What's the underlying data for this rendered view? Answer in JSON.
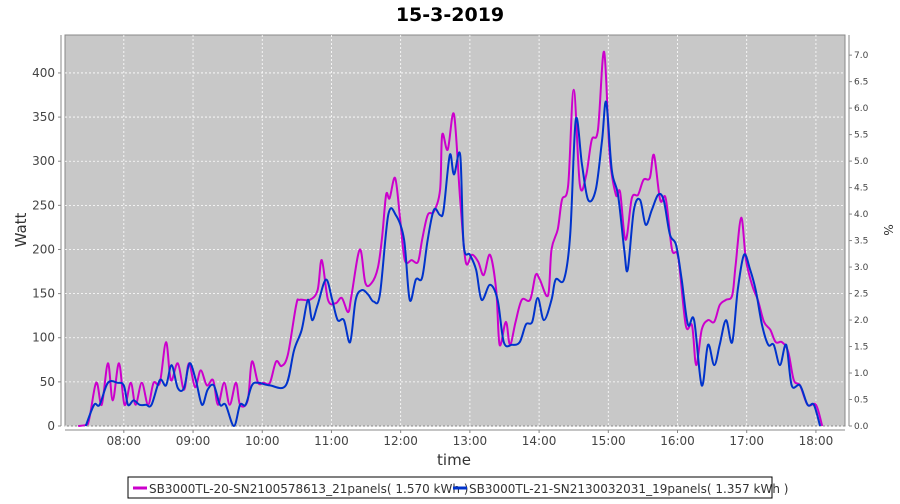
{
  "chart_data": {
    "type": "line",
    "title": "15-3-2019",
    "xlabel": "time",
    "ylabel": "Watt",
    "y2label": "%",
    "xlim": [
      7.15,
      18.42
    ],
    "ylim": [
      0,
      443
    ],
    "y2lim": [
      0,
      7.38
    ],
    "grid": true,
    "legend_position": "bottom",
    "x_ticks": [
      {
        "v": 8,
        "label": "08:00"
      },
      {
        "v": 9,
        "label": "09:00"
      },
      {
        "v": 10,
        "label": "10:00"
      },
      {
        "v": 11,
        "label": "11:00"
      },
      {
        "v": 12,
        "label": "12:00"
      },
      {
        "v": 13,
        "label": "13:00"
      },
      {
        "v": 14,
        "label": "14:00"
      },
      {
        "v": 15,
        "label": "15:00"
      },
      {
        "v": 16,
        "label": "16:00"
      },
      {
        "v": 17,
        "label": "17:00"
      },
      {
        "v": 18,
        "label": "18:00"
      }
    ],
    "y_ticks": [
      0,
      50,
      100,
      150,
      200,
      250,
      300,
      350,
      400
    ],
    "y2_ticks": [
      "0.0",
      "0.5",
      "1.0",
      "1.5",
      "2.0",
      "2.5",
      "3.0",
      "3.5",
      "4.0",
      "4.5",
      "5.0",
      "5.5",
      "6.0",
      "6.5",
      "7.0"
    ],
    "series": [
      {
        "name": "SB3000TL-20-SN2100578613_21panels( 1.570 kWh )",
        "color": "#cc00cc",
        "x": [
          7.34,
          7.48,
          7.6,
          7.68,
          7.77,
          7.84,
          7.93,
          8.01,
          8.1,
          8.17,
          8.26,
          8.35,
          8.43,
          8.52,
          8.61,
          8.68,
          8.78,
          8.87,
          8.94,
          9.03,
          9.11,
          9.2,
          9.29,
          9.36,
          9.45,
          9.53,
          9.62,
          9.68,
          9.79,
          9.85,
          9.94,
          10.02,
          10.11,
          10.2,
          10.28,
          10.37,
          10.49,
          10.54,
          10.69,
          10.8,
          10.86,
          10.95,
          11.06,
          11.15,
          11.24,
          11.29,
          11.41,
          11.49,
          11.58,
          11.67,
          11.73,
          11.79,
          11.84,
          11.92,
          11.99,
          12.06,
          12.16,
          12.25,
          12.31,
          12.39,
          12.48,
          12.57,
          12.6,
          12.68,
          12.77,
          12.86,
          12.94,
          13.03,
          13.12,
          13.2,
          13.29,
          13.38,
          13.43,
          13.52,
          13.58,
          13.66,
          13.75,
          13.87,
          13.95,
          14.01,
          14.13,
          14.18,
          14.27,
          14.33,
          14.42,
          14.5,
          14.59,
          14.68,
          14.76,
          14.85,
          14.94,
          15.02,
          15.11,
          15.17,
          15.25,
          15.34,
          15.43,
          15.51,
          15.6,
          15.66,
          15.75,
          15.83,
          15.92,
          16.01,
          16.12,
          16.21,
          16.27,
          16.35,
          16.44,
          16.53,
          16.61,
          16.7,
          16.79,
          16.84,
          16.92,
          16.99,
          17.08,
          17.16,
          17.25,
          17.34,
          17.42,
          17.51,
          17.6,
          17.68,
          17.77,
          17.88,
          18.0,
          18.09
        ],
        "y": [
          0,
          2,
          49,
          24,
          71,
          29,
          71,
          24,
          49,
          24,
          49,
          24,
          49,
          49,
          95,
          52,
          71,
          41,
          71,
          44,
          63,
          46,
          52,
          24,
          49,
          24,
          49,
          24,
          29,
          73,
          49,
          49,
          49,
          73,
          68,
          81,
          137,
          143,
          143,
          154,
          188,
          143,
          139,
          145,
          129,
          148,
          200,
          162,
          162,
          179,
          213,
          262,
          258,
          281,
          236,
          188,
          188,
          186,
          211,
          239,
          243,
          268,
          330,
          313,
          353,
          256,
          186,
          194,
          186,
          171,
          194,
          154,
          92,
          118,
          92,
          118,
          143,
          143,
          171,
          166,
          148,
          200,
          223,
          256,
          273,
          381,
          273,
          284,
          324,
          335,
          424,
          307,
          262,
          265,
          211,
          258,
          262,
          279,
          281,
          307,
          256,
          258,
          200,
          191,
          114,
          114,
          69,
          109,
          120,
          118,
          137,
          143,
          148,
          182,
          236,
          188,
          159,
          143,
          118,
          109,
          95,
          95,
          84,
          52,
          46,
          24,
          24,
          0
        ]
      },
      {
        "name": "SB3000TL-21-SN2130032031_19panels( 1.357 kWh )",
        "color": "#0033cc",
        "x": [
          7.45,
          7.57,
          7.65,
          7.77,
          7.91,
          8.0,
          8.06,
          8.14,
          8.23,
          8.32,
          8.4,
          8.52,
          8.61,
          8.69,
          8.78,
          8.87,
          8.95,
          9.04,
          9.13,
          9.21,
          9.3,
          9.39,
          9.47,
          9.59,
          9.68,
          9.76,
          9.85,
          9.94,
          10.11,
          10.34,
          10.46,
          10.57,
          10.66,
          10.72,
          10.8,
          10.92,
          11.01,
          11.09,
          11.18,
          11.27,
          11.35,
          11.44,
          11.53,
          11.61,
          11.7,
          11.82,
          11.93,
          12.05,
          12.13,
          12.22,
          12.31,
          12.39,
          12.48,
          12.57,
          12.62,
          12.71,
          12.77,
          12.86,
          12.91,
          13.0,
          13.09,
          13.17,
          13.29,
          13.4,
          13.49,
          13.61,
          13.72,
          13.81,
          13.9,
          13.98,
          14.07,
          14.18,
          14.24,
          14.36,
          14.45,
          14.53,
          14.62,
          14.71,
          14.82,
          14.91,
          14.97,
          15.05,
          15.14,
          15.23,
          15.28,
          15.37,
          15.46,
          15.54,
          15.63,
          15.72,
          15.8,
          15.89,
          15.98,
          16.06,
          16.15,
          16.24,
          16.35,
          16.44,
          16.53,
          16.61,
          16.7,
          16.79,
          16.87,
          16.96,
          17.05,
          17.13,
          17.22,
          17.31,
          17.39,
          17.48,
          17.57,
          17.65,
          17.77,
          17.88,
          17.97,
          18.06
        ],
        "y": [
          0,
          24,
          24,
          49,
          49,
          46,
          24,
          29,
          24,
          24,
          24,
          52,
          46,
          69,
          43,
          43,
          71,
          52,
          24,
          41,
          46,
          24,
          24,
          0,
          24,
          24,
          46,
          49,
          46,
          46,
          86,
          109,
          143,
          120,
          137,
          166,
          143,
          120,
          120,
          95,
          143,
          154,
          149,
          141,
          149,
          239,
          239,
          211,
          143,
          166,
          168,
          211,
          245,
          239,
          245,
          307,
          285,
          307,
          205,
          194,
          177,
          143,
          160,
          143,
          95,
          92,
          95,
          115,
          118,
          145,
          120,
          143,
          166,
          166,
          217,
          347,
          296,
          256,
          268,
          324,
          367,
          290,
          262,
          200,
          177,
          245,
          256,
          228,
          245,
          262,
          256,
          217,
          205,
          166,
          115,
          120,
          46,
          92,
          69,
          92,
          120,
          95,
          154,
          194,
          177,
          154,
          115,
          92,
          92,
          69,
          92,
          46,
          46,
          24,
          24,
          0
        ]
      }
    ]
  }
}
